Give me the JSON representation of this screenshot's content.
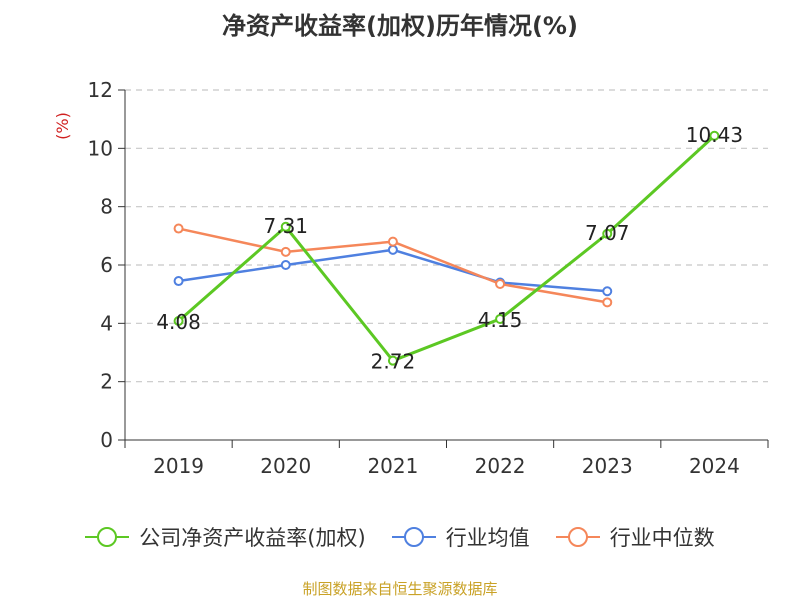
{
  "chart_data": {
    "type": "line",
    "title": "净资产收益率(加权)历年情况(%)",
    "ylabel": "(%)",
    "xlabel": "",
    "ylim": [
      0,
      12
    ],
    "yticks": [
      "0",
      "2",
      "4",
      "6",
      "8",
      "10",
      "12"
    ],
    "categories": [
      "2019",
      "2020",
      "2021",
      "2022",
      "2023",
      "2024"
    ],
    "series": [
      {
        "name": "公司净资产收益率(加权)",
        "color": "#5cc823",
        "values": [
          4.08,
          7.31,
          2.72,
          4.15,
          7.07,
          10.43
        ],
        "labels": [
          "4.08",
          "7.31",
          "2.72",
          "4.15",
          "7.07",
          "10.43"
        ]
      },
      {
        "name": "行业均值",
        "color": "#4f80e0",
        "values": [
          5.45,
          6.0,
          6.52,
          5.4,
          5.1,
          null
        ]
      },
      {
        "name": "行业中位数",
        "color": "#f5875a",
        "values": [
          7.25,
          6.45,
          6.8,
          5.35,
          4.72,
          null
        ]
      }
    ],
    "grid": true,
    "legend_position": "bottom"
  },
  "source": "制图数据来自恒生聚源数据库"
}
